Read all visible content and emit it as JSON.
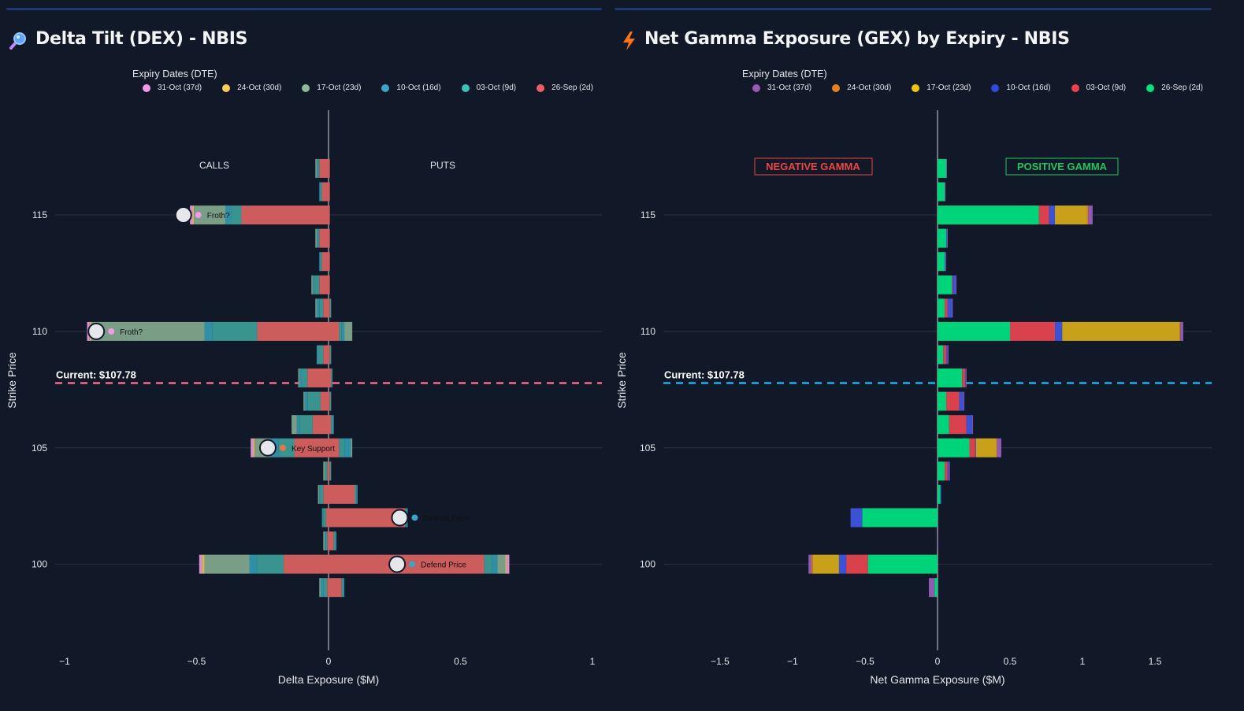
{
  "dex": {
    "title": "Delta Tilt (DEX) - NBIS",
    "icon": "magnifier-icon",
    "legend_title": "Expiry Dates (DTE)",
    "legend": [
      {
        "label": "31-Oct (37d)",
        "color": "#f29ae8"
      },
      {
        "label": "24-Oct (30d)",
        "color": "#f8cd5a"
      },
      {
        "label": "17-Oct (23d)",
        "color": "#8db99a"
      },
      {
        "label": "10-Oct (16d)",
        "color": "#3aa5c4"
      },
      {
        "label": "03-Oct (9d)",
        "color": "#3cc2b5"
      },
      {
        "label": "26-Sep (2d)",
        "color": "#ee5f63"
      }
    ],
    "calls_label": "CALLS",
    "puts_label": "PUTS",
    "current_label": "Current: $107.78",
    "current_line_color": "#ef6c8e",
    "xlabel": "Delta Exposure ($M)",
    "ylabel": "Strike Price",
    "annotations": [
      {
        "strike": 115,
        "x": -0.55,
        "text": "Froth?",
        "marker_color": "#f29ae8"
      },
      {
        "strike": 110,
        "x": -0.88,
        "text": "Froth?",
        "marker_color": "#f29ae8"
      },
      {
        "strike": 105,
        "x": -0.23,
        "text": "Key Support",
        "marker_color": "#e8744a"
      },
      {
        "strike": 102,
        "x": 0.27,
        "text": "Defend Price",
        "marker_color": "#3aa5c4"
      },
      {
        "strike": 100,
        "x": 0.26,
        "text": "Defend Price",
        "marker_color": "#3aa5c4"
      }
    ]
  },
  "gex": {
    "title": "Net Gamma Exposure (GEX) by Expiry - NBIS",
    "icon": "lightning-icon",
    "legend_title": "Expiry Dates (DTE)",
    "legend": [
      {
        "label": "31-Oct (37d)",
        "color": "#9b59b6"
      },
      {
        "label": "24-Oct (30d)",
        "color": "#e67e22"
      },
      {
        "label": "17-Oct (23d)",
        "color": "#f1c40f"
      },
      {
        "label": "10-Oct (16d)",
        "color": "#3448e0"
      },
      {
        "label": "03-Oct (9d)",
        "color": "#ef3f4e"
      },
      {
        "label": "26-Sep (2d)",
        "color": "#00e37a"
      }
    ],
    "negative_label": "NEGATIVE GAMMA",
    "positive_label": "POSITIVE GAMMA",
    "current_label": "Current: $107.78",
    "current_line_color": "#1ab3e8",
    "xlabel": "Net Gamma Exposure ($M)",
    "ylabel": "Strike Price"
  },
  "chart_data": [
    {
      "type": "bar",
      "orientation": "horizontal",
      "stacked": true,
      "title": "Delta Tilt (DEX) - NBIS",
      "xlabel": "Delta Exposure ($M)",
      "ylabel": "Strike Price",
      "xlim": [
        -1.0,
        1.0
      ],
      "xticks": [
        -1,
        -0.5,
        0,
        0.5,
        1
      ],
      "ylim": [
        96.3,
        119.5
      ],
      "yticks": [
        100,
        105,
        110,
        115
      ],
      "current_price": 107.78,
      "strikes": [
        99,
        100,
        101,
        102,
        103,
        104,
        105,
        106,
        107,
        108,
        109,
        110,
        111,
        112,
        113,
        114,
        115,
        116,
        117
      ],
      "series": [
        {
          "name": "31-Oct (37d)",
          "color": "#d88fd0",
          "calls": [
            0,
            -0.01,
            0,
            0,
            0,
            0,
            -0.01,
            0,
            0,
            0,
            0,
            -0.01,
            0,
            0,
            0,
            0,
            -0.01,
            0,
            0
          ],
          "puts": [
            0,
            0.01,
            0,
            0,
            0,
            0,
            0,
            0,
            0,
            0,
            0,
            0,
            0,
            0,
            0,
            0,
            0,
            0,
            0
          ]
        },
        {
          "name": "24-Oct (30d)",
          "color": "#d9b45a",
          "calls": [
            0,
            -0.01,
            0,
            0,
            0,
            0,
            -0.005,
            0,
            0,
            0,
            0,
            -0.005,
            0,
            0,
            0,
            0,
            -0.005,
            0,
            0
          ],
          "puts": [
            0,
            0.005,
            0,
            0,
            0,
            0,
            0,
            0,
            0,
            0,
            0,
            0,
            0,
            0,
            0,
            0,
            0,
            0,
            0
          ]
        },
        {
          "name": "17-Oct (23d)",
          "color": "#7a9e85",
          "calls": [
            -0.005,
            -0.17,
            -0.005,
            0,
            -0.005,
            -0.005,
            -0.06,
            -0.02,
            -0.005,
            -0.005,
            0,
            -0.43,
            -0.005,
            -0.005,
            0,
            -0.005,
            -0.12,
            0,
            -0.005
          ],
          "puts": [
            0,
            0.03,
            0,
            0,
            0,
            0,
            0.005,
            0,
            0,
            0,
            0,
            0.03,
            0,
            0,
            0,
            0,
            0,
            0,
            0
          ]
        },
        {
          "name": "10-Oct (16d)",
          "color": "#2f8fa6",
          "calls": [
            -0.01,
            -0.03,
            -0.005,
            -0.005,
            -0.005,
            0,
            -0.03,
            -0.01,
            -0.01,
            -0.01,
            -0.005,
            -0.03,
            -0.01,
            -0.005,
            -0.005,
            -0.005,
            -0.02,
            -0.005,
            -0.005
          ],
          "puts": [
            0.005,
            0.02,
            0.005,
            0.005,
            0.005,
            0,
            0.025,
            0.005,
            0,
            0,
            0,
            0.01,
            0,
            0,
            0,
            0,
            0,
            0,
            0
          ]
        },
        {
          "name": "03-Oct (9d)",
          "color": "#39938f",
          "calls": [
            -0.015,
            -0.1,
            -0.005,
            -0.01,
            -0.01,
            -0.01,
            -0.06,
            -0.05,
            -0.05,
            -0.02,
            -0.02,
            -0.17,
            -0.015,
            -0.02,
            -0.005,
            -0.005,
            -0.04,
            -0.005,
            -0.005
          ],
          "puts": [
            0.005,
            0.03,
            0.005,
            0.005,
            0.005,
            0.005,
            0.02,
            0.005,
            0.005,
            0.005,
            0.005,
            0.01,
            0.005,
            0,
            0,
            0,
            0,
            0,
            0
          ]
        },
        {
          "name": "26-Sep (2d)",
          "color": "#cd5c5c",
          "calls": [
            -0.005,
            -0.17,
            -0.005,
            -0.01,
            -0.02,
            -0.005,
            -0.13,
            -0.06,
            -0.03,
            -0.08,
            -0.02,
            -0.27,
            -0.02,
            -0.035,
            -0.025,
            -0.035,
            -0.33,
            -0.025,
            -0.035
          ],
          "puts": [
            0.05,
            0.59,
            0.02,
            0.29,
            0.1,
            0.005,
            0.04,
            0.01,
            0.005,
            0.01,
            0.005,
            0.04,
            0.005,
            0.005,
            0.005,
            0.005,
            0.005,
            0.005,
            0.005
          ]
        }
      ],
      "annotations": [
        "Froth?",
        "Froth?",
        "Key Support",
        "Defend Price",
        "Defend Price"
      ]
    },
    {
      "type": "bar",
      "orientation": "horizontal",
      "stacked": true,
      "title": "Net Gamma Exposure (GEX) by Expiry - NBIS",
      "xlabel": "Net Gamma Exposure ($M)",
      "ylabel": "Strike Price",
      "xlim": [
        -1.9,
        1.9
      ],
      "xticks": [
        -1.5,
        -1,
        -0.5,
        0,
        0.5,
        1,
        1.5
      ],
      "ylim": [
        96.3,
        119.5
      ],
      "yticks": [
        100,
        105,
        110,
        115
      ],
      "current_price": 107.78,
      "strikes": [
        99,
        100,
        101,
        102,
        103,
        104,
        105,
        106,
        107,
        108,
        109,
        110,
        111,
        112,
        113,
        114,
        115,
        116,
        117
      ],
      "series": [
        {
          "name": "26-Sep (2d)",
          "color": "#00d47a",
          "values": [
            -0.02,
            -0.48,
            0,
            -0.52,
            0.02,
            0.05,
            0.22,
            0.08,
            0.06,
            0.17,
            0.04,
            0.5,
            0.05,
            0.1,
            0.05,
            0.06,
            0.7,
            0.05,
            0.06
          ]
        },
        {
          "name": "03-Oct (9d)",
          "color": "#d9414c",
          "values": [
            0,
            -0.15,
            0,
            0,
            0,
            0.02,
            0.04,
            0.12,
            0.09,
            0.02,
            0.02,
            0.31,
            0.02,
            0.005,
            0,
            0,
            0.07,
            0,
            0
          ]
        },
        {
          "name": "10-Oct (16d)",
          "color": "#3b52d6",
          "values": [
            0,
            -0.05,
            0,
            -0.08,
            0.005,
            0.01,
            0.005,
            0.04,
            0.03,
            0.005,
            0.01,
            0.05,
            0.03,
            0.02,
            0.005,
            0.005,
            0.04,
            0,
            0
          ]
        },
        {
          "name": "17-Oct (23d)",
          "color": "#c8a019",
          "values": [
            0,
            -0.18,
            0,
            0,
            0,
            0,
            0.14,
            0,
            0,
            0,
            0,
            0.81,
            0,
            0,
            0,
            0,
            0.22,
            0,
            0
          ]
        },
        {
          "name": "24-Oct (30d)",
          "color": "#d97a2a",
          "values": [
            0,
            -0.01,
            0,
            0,
            0,
            0,
            0.005,
            0,
            0,
            0,
            0,
            0.005,
            0,
            0,
            0,
            0,
            0.01,
            0,
            0
          ]
        },
        {
          "name": "31-Oct (37d)",
          "color": "#8e5bb0",
          "values": [
            -0.04,
            -0.02,
            0.005,
            0,
            0,
            0.005,
            0.03,
            0.005,
            0.005,
            0.005,
            0.005,
            0.02,
            0.005,
            0.005,
            0.005,
            0.005,
            0.03,
            0.005,
            0.005
          ]
        }
      ]
    }
  ]
}
